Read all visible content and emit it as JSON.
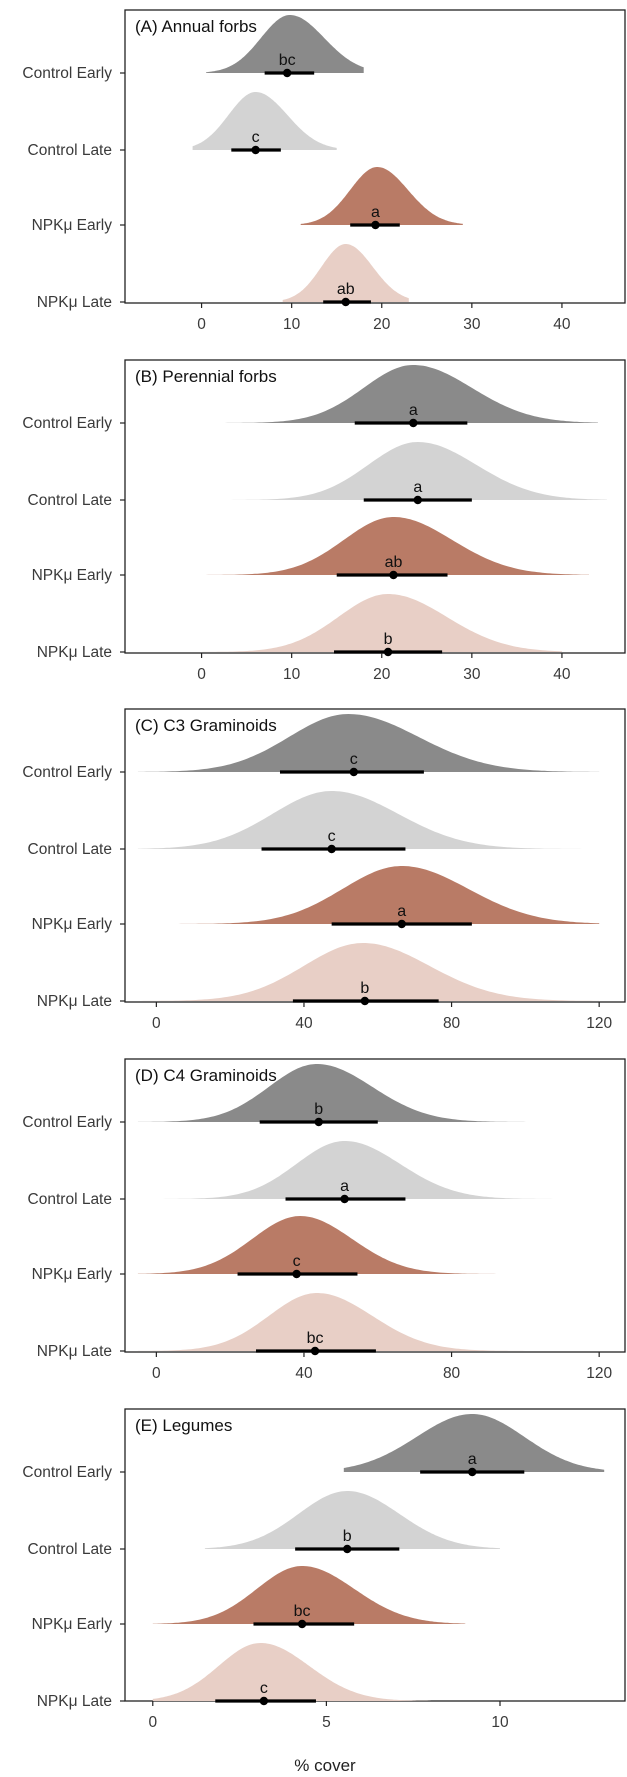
{
  "chart_data": [
    {
      "type": "density-interval",
      "title": "(A) Annual forbs",
      "categories": [
        "Control Early",
        "Control Late",
        "NPKμ Early",
        "NPKμ Late"
      ],
      "xlim": [
        -8.5,
        47
      ],
      "xticks": [
        0,
        10,
        20,
        30,
        40
      ],
      "series": [
        {
          "category": "Control Early",
          "mean": 9.5,
          "lower": 7.0,
          "upper": 12.5,
          "mode": 9.8,
          "spread_left": 3.2,
          "spread_right": 3.8,
          "min": 0.5,
          "max": 18,
          "label": "bc",
          "color": "#8a8a8a"
        },
        {
          "category": "Control Late",
          "mean": 6.0,
          "lower": 3.3,
          "upper": 8.8,
          "mode": 6.0,
          "spread_left": 3.0,
          "spread_right": 3.5,
          "min": -1,
          "max": 15,
          "label": "c",
          "color": "#d3d3d3"
        },
        {
          "category": "NPKμ Early",
          "mean": 19.3,
          "lower": 16.5,
          "upper": 22.0,
          "mode": 19.5,
          "spread_left": 3.0,
          "spread_right": 3.4,
          "min": 11,
          "max": 29,
          "label": "a",
          "color": "#b97b66"
        },
        {
          "category": "NPKμ Late",
          "mean": 16.0,
          "lower": 13.5,
          "upper": 18.8,
          "mode": 16.0,
          "spread_left": 2.7,
          "spread_right": 3.0,
          "min": 9,
          "max": 23,
          "label": "ab",
          "color": "#e8cfc6"
        }
      ]
    },
    {
      "type": "density-interval",
      "title": "(B) Perennial forbs",
      "categories": [
        "Control Early",
        "Control Late",
        "NPKμ Early",
        "NPKμ Late"
      ],
      "xlim": [
        -8.5,
        47
      ],
      "xticks": [
        0,
        10,
        20,
        30,
        40
      ],
      "series": [
        {
          "category": "Control Early",
          "mean": 23.5,
          "lower": 17.0,
          "upper": 29.5,
          "mode": 23.5,
          "spread_left": 5.5,
          "spread_right": 6.5,
          "min": -3,
          "max": 44,
          "label": "a",
          "color": "#8a8a8a"
        },
        {
          "category": "Control Late",
          "mean": 24.0,
          "lower": 18.0,
          "upper": 30.0,
          "mode": 24.0,
          "spread_left": 5.5,
          "spread_right": 6.5,
          "min": -3,
          "max": 45,
          "label": "a",
          "color": "#d3d3d3"
        },
        {
          "category": "NPKμ Early",
          "mean": 21.3,
          "lower": 15.0,
          "upper": 27.3,
          "mode": 21.3,
          "spread_left": 5.5,
          "spread_right": 6.5,
          "min": -3,
          "max": 43,
          "label": "ab",
          "color": "#b97b66"
        },
        {
          "category": "NPKμ Late",
          "mean": 20.7,
          "lower": 14.7,
          "upper": 26.7,
          "mode": 20.7,
          "spread_left": 5.5,
          "spread_right": 6.5,
          "min": -3,
          "max": 40,
          "label": "b",
          "color": "#e8cfc6"
        }
      ]
    },
    {
      "type": "density-interval",
      "title": "(C) C3 Graminoids",
      "categories": [
        "Control Early",
        "Control Late",
        "NPKμ Early",
        "NPKμ Late"
      ],
      "xlim": [
        -8.5,
        127
      ],
      "xticks": [
        0,
        40,
        80,
        120
      ],
      "series": [
        {
          "category": "Control Early",
          "mean": 53.5,
          "lower": 33.5,
          "upper": 72.5,
          "mode": 52.0,
          "spread_left": 16,
          "spread_right": 19,
          "min": -5,
          "max": 120,
          "label": "c",
          "color": "#8a8a8a"
        },
        {
          "category": "Control Late",
          "mean": 47.5,
          "lower": 28.5,
          "upper": 67.5,
          "mode": 47.5,
          "spread_left": 16,
          "spread_right": 18,
          "min": -5,
          "max": 120,
          "label": "c",
          "color": "#d3d3d3"
        },
        {
          "category": "NPKμ Early",
          "mean": 66.5,
          "lower": 47.5,
          "upper": 85.5,
          "mode": 66.5,
          "spread_left": 16,
          "spread_right": 18,
          "min": -5,
          "max": 120,
          "label": "a",
          "color": "#b97b66"
        },
        {
          "category": "NPKμ Late",
          "mean": 56.5,
          "lower": 37.0,
          "upper": 76.5,
          "mode": 56.0,
          "spread_left": 16,
          "spread_right": 18,
          "min": -5,
          "max": 120,
          "label": "b",
          "color": "#e8cfc6"
        }
      ]
    },
    {
      "type": "density-interval",
      "title": "(D) C4 Graminoids",
      "categories": [
        "Control Early",
        "Control Late",
        "NPKμ Early",
        "NPKμ Late"
      ],
      "xlim": [
        -8.5,
        127
      ],
      "xticks": [
        0,
        40,
        80,
        120
      ],
      "series": [
        {
          "category": "Control Early",
          "mean": 44.0,
          "lower": 28.0,
          "upper": 60.0,
          "mode": 43.5,
          "spread_left": 13,
          "spread_right": 15,
          "min": -5,
          "max": 105,
          "label": "b",
          "color": "#8a8a8a"
        },
        {
          "category": "Control Late",
          "mean": 51.0,
          "lower": 35.0,
          "upper": 67.5,
          "mode": 51.0,
          "spread_left": 13,
          "spread_right": 15,
          "min": -5,
          "max": 115,
          "label": "a",
          "color": "#d3d3d3"
        },
        {
          "category": "NPKμ Early",
          "mean": 38.0,
          "lower": 22.0,
          "upper": 54.5,
          "mode": 39.0,
          "spread_left": 13,
          "spread_right": 14,
          "min": -5,
          "max": 100,
          "label": "c",
          "color": "#b97b66"
        },
        {
          "category": "NPKμ Late",
          "mean": 43.0,
          "lower": 27.0,
          "upper": 59.5,
          "mode": 43.5,
          "spread_left": 13,
          "spread_right": 15,
          "min": -5,
          "max": 110,
          "label": "bc",
          "color": "#e8cfc6"
        }
      ]
    },
    {
      "type": "density-interval",
      "title": "(E) Legumes",
      "categories": [
        "Control Early",
        "Control Late",
        "NPKμ Early",
        "NPKμ Late"
      ],
      "xlim": [
        -0.8,
        13.6
      ],
      "xticks": [
        0,
        5,
        10
      ],
      "xlabel": "% cover",
      "series": [
        {
          "category": "Control Early",
          "mean": 9.2,
          "lower": 7.7,
          "upper": 10.7,
          "mode": 9.2,
          "spread_left": 1.6,
          "spread_right": 1.5,
          "min": 5.5,
          "max": 13.0,
          "label": "a",
          "color": "#8a8a8a"
        },
        {
          "category": "Control Late",
          "mean": 5.6,
          "lower": 4.1,
          "upper": 7.1,
          "mode": 5.6,
          "spread_left": 1.4,
          "spread_right": 1.5,
          "min": 1.5,
          "max": 10.0,
          "label": "b",
          "color": "#d3d3d3"
        },
        {
          "category": "NPKμ Early",
          "mean": 4.3,
          "lower": 2.9,
          "upper": 5.8,
          "mode": 4.3,
          "spread_left": 1.3,
          "spread_right": 1.5,
          "min": 0.0,
          "max": 9.0,
          "label": "bc",
          "color": "#b97b66"
        },
        {
          "category": "NPKμ Late",
          "mean": 3.2,
          "lower": 1.8,
          "upper": 4.7,
          "mode": 3.1,
          "spread_left": 1.2,
          "spread_right": 1.4,
          "min": 0.0,
          "max": 8.0,
          "label": "c",
          "color": "#e8cfc6"
        }
      ]
    }
  ]
}
